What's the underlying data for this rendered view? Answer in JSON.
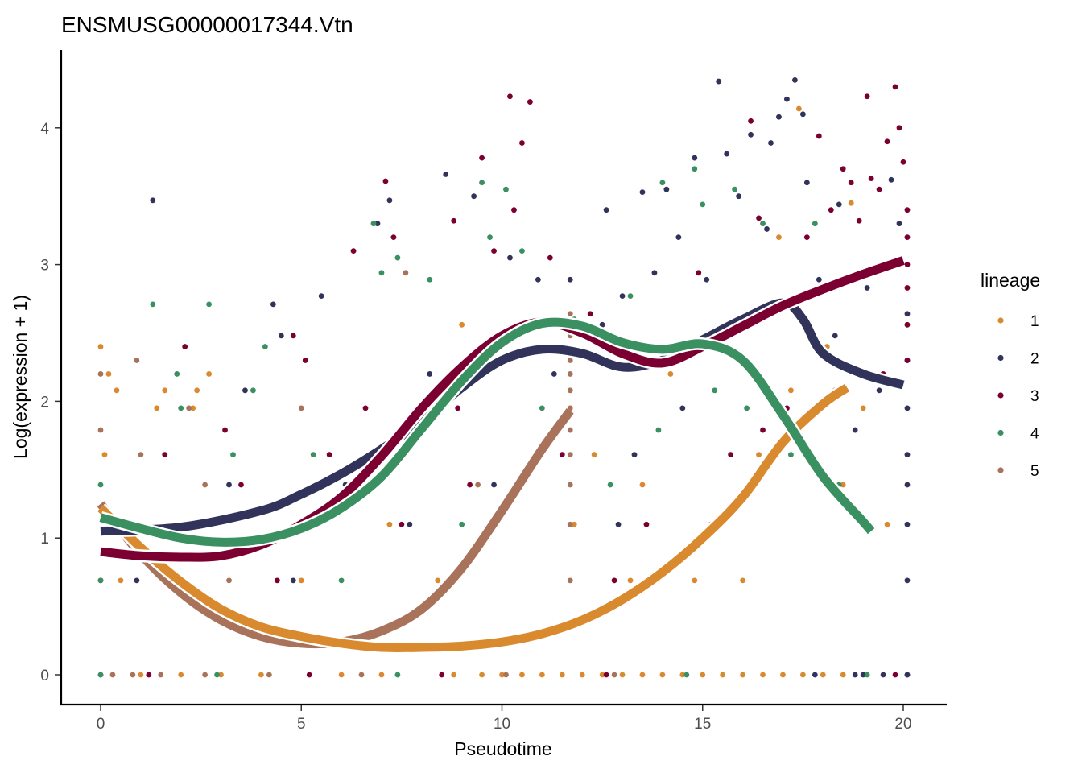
{
  "chart_data": {
    "type": "scatter",
    "title": "ENSMUSG00000017344.Vtn",
    "xlabel": "Pseudotime",
    "ylabel": "Log(expression + 1)",
    "xlim": [
      -1,
      21
    ],
    "ylim": [
      -0.22,
      4.55
    ],
    "x_ticks": [
      0,
      5,
      10,
      15,
      20
    ],
    "x_tick_labels": [
      "0",
      "5",
      "10",
      "15",
      "20"
    ],
    "y_ticks": [
      0,
      1,
      2,
      3,
      4
    ],
    "y_tick_labels": [
      "0",
      "1",
      "2",
      "3",
      "4"
    ],
    "grid": false,
    "legend": {
      "title": "lineage",
      "placement": "right"
    },
    "series": [
      {
        "name": "1",
        "color": "#D98A2E",
        "smooth_curve": {
          "x": [
            0,
            1,
            2,
            3,
            4,
            5,
            6,
            7,
            8,
            9,
            10,
            11,
            12,
            13,
            14,
            15,
            16,
            17,
            18,
            18.6
          ],
          "y": [
            1.22,
            0.93,
            0.68,
            0.48,
            0.35,
            0.28,
            0.23,
            0.2,
            0.2,
            0.21,
            0.24,
            0.3,
            0.4,
            0.55,
            0.75,
            1.0,
            1.3,
            1.7,
            1.98,
            2.1
          ]
        },
        "points": [
          [
            0,
            2.4
          ],
          [
            0.2,
            2.2
          ],
          [
            0.4,
            2.08
          ],
          [
            0.1,
            1.61
          ],
          [
            1.6,
            2.08
          ],
          [
            2.4,
            2.08
          ],
          [
            2.7,
            2.2
          ],
          [
            1.4,
            1.95
          ],
          [
            2.3,
            1.95
          ],
          [
            0.3,
            1.1
          ],
          [
            0.5,
            0.69
          ],
          [
            1.7,
            0.69
          ],
          [
            5.0,
            0.69
          ],
          [
            8.4,
            0.69
          ],
          [
            7.2,
            1.1
          ],
          [
            9.0,
            2.56
          ],
          [
            11.8,
            1.1
          ],
          [
            12.3,
            1.61
          ],
          [
            13.5,
            1.39
          ],
          [
            14.2,
            2.2
          ],
          [
            15.8,
            2.56
          ],
          [
            17.4,
            4.14
          ],
          [
            16.9,
            3.2
          ],
          [
            17.2,
            2.08
          ],
          [
            18.1,
            2.4
          ],
          [
            18.7,
            3.45
          ],
          [
            19.0,
            1.95
          ],
          [
            15.2,
            1.1
          ],
          [
            16.4,
            1.61
          ],
          [
            13.2,
            0.69
          ],
          [
            14.8,
            0.69
          ],
          [
            16.0,
            0.69
          ],
          [
            18.5,
            1.39
          ],
          [
            19.6,
            1.1
          ],
          [
            10.5,
            0
          ],
          [
            11,
            0
          ],
          [
            11.5,
            0
          ],
          [
            12,
            0
          ],
          [
            12.5,
            0
          ],
          [
            13,
            0
          ],
          [
            13.5,
            0
          ],
          [
            14,
            0
          ],
          [
            14.5,
            0
          ],
          [
            15,
            0
          ],
          [
            15.5,
            0
          ],
          [
            16,
            0
          ],
          [
            16.5,
            0
          ],
          [
            17,
            0
          ],
          [
            17.5,
            0
          ],
          [
            1,
            0
          ],
          [
            2,
            0
          ],
          [
            3,
            0
          ],
          [
            4,
            0
          ],
          [
            6,
            0
          ],
          [
            7,
            0
          ],
          [
            8.8,
            0
          ],
          [
            9.5,
            0
          ],
          [
            10,
            0
          ],
          [
            18,
            0
          ],
          [
            18.5,
            0
          ]
        ]
      },
      {
        "name": "2",
        "color": "#31335A",
        "smooth_curve": {
          "x": [
            0,
            2,
            4,
            5,
            6,
            7,
            8,
            9,
            10,
            11,
            12,
            13,
            14,
            15,
            16,
            17,
            17.5,
            18,
            19,
            20
          ],
          "y": [
            1.05,
            1.08,
            1.2,
            1.32,
            1.47,
            1.65,
            1.85,
            2.1,
            2.3,
            2.38,
            2.35,
            2.25,
            2.3,
            2.45,
            2.6,
            2.72,
            2.6,
            2.35,
            2.2,
            2.12
          ]
        },
        "points": [
          [
            1.3,
            3.47
          ],
          [
            4.3,
            2.71
          ],
          [
            4.5,
            2.48
          ],
          [
            5.5,
            2.77
          ],
          [
            3.6,
            2.08
          ],
          [
            6.9,
            3.3
          ],
          [
            7.2,
            3.47
          ],
          [
            8.6,
            3.66
          ],
          [
            9.3,
            3.5
          ],
          [
            10.2,
            3.05
          ],
          [
            10.9,
            2.89
          ],
          [
            11.7,
            2.89
          ],
          [
            12.6,
            3.4
          ],
          [
            13,
            2.77
          ],
          [
            13.5,
            3.53
          ],
          [
            14.1,
            3.55
          ],
          [
            14.8,
            3.78
          ],
          [
            15.4,
            4.34
          ],
          [
            15.6,
            3.81
          ],
          [
            16.2,
            3.95
          ],
          [
            16.9,
            4.08
          ],
          [
            17.1,
            4.21
          ],
          [
            17.3,
            4.35
          ],
          [
            17.5,
            4.1
          ],
          [
            16.7,
            3.89
          ],
          [
            17.6,
            3.6
          ],
          [
            18.4,
            3.44
          ],
          [
            19.7,
            3.62
          ],
          [
            19.9,
            3.3
          ],
          [
            20.1,
            2.64
          ],
          [
            20.1,
            2.3
          ],
          [
            20.1,
            1.95
          ],
          [
            20.1,
            1.61
          ],
          [
            20.1,
            1.39
          ],
          [
            20.1,
            1.1
          ],
          [
            20.1,
            0.69
          ],
          [
            20.1,
            0
          ],
          [
            19.4,
            2.08
          ],
          [
            18.8,
            1.79
          ],
          [
            14.5,
            1.95
          ],
          [
            13.3,
            1.61
          ],
          [
            12.9,
            1.1
          ],
          [
            9.8,
            1.39
          ],
          [
            8.2,
            2.2
          ],
          [
            6.1,
            1.39
          ],
          [
            3.2,
            1.39
          ],
          [
            1.8,
            1.1
          ],
          [
            0.9,
            0.69
          ],
          [
            4.8,
            0.69
          ],
          [
            7.7,
            1.1
          ],
          [
            11.3,
            2.2
          ],
          [
            12.5,
            2.56
          ],
          [
            15.1,
            2.89
          ],
          [
            16.3,
            2.64
          ],
          [
            17.9,
            2.89
          ],
          [
            18.3,
            2.48
          ],
          [
            19.1,
            2.83
          ],
          [
            16.6,
            3.26
          ],
          [
            15.9,
            3.5
          ],
          [
            14.4,
            3.2
          ],
          [
            13.8,
            2.94
          ],
          [
            19.5,
            0
          ],
          [
            19,
            0
          ],
          [
            18.8,
            0
          ],
          [
            17.8,
            0
          ],
          [
            20.1,
            0
          ]
        ]
      },
      {
        "name": "3",
        "color": "#7B0031",
        "smooth_curve": {
          "x": [
            0,
            1,
            2,
            3,
            4,
            5,
            6,
            7,
            8,
            9,
            10,
            11,
            12,
            13,
            14,
            15,
            16,
            17,
            18,
            19,
            20
          ],
          "y": [
            0.9,
            0.87,
            0.86,
            0.87,
            0.95,
            1.1,
            1.3,
            1.6,
            1.95,
            2.25,
            2.48,
            2.58,
            2.5,
            2.35,
            2.28,
            2.4,
            2.55,
            2.7,
            2.82,
            2.93,
            3.03
          ]
        },
        "points": [
          [
            2.1,
            2.4
          ],
          [
            1.6,
            1.61
          ],
          [
            3.1,
            1.79
          ],
          [
            4.8,
            2.48
          ],
          [
            5.1,
            2.3
          ],
          [
            6.3,
            3.1
          ],
          [
            7.1,
            3.61
          ],
          [
            7.3,
            3.2
          ],
          [
            8.8,
            3.32
          ],
          [
            9.5,
            3.78
          ],
          [
            10.2,
            4.23
          ],
          [
            10.7,
            4.19
          ],
          [
            10.5,
            3.89
          ],
          [
            11.2,
            3.05
          ],
          [
            10.3,
            3.4
          ],
          [
            9.8,
            3.1
          ],
          [
            12.2,
            2.64
          ],
          [
            16.2,
            4.05
          ],
          [
            17.9,
            3.94
          ],
          [
            19.1,
            4.23
          ],
          [
            19.8,
            4.3
          ],
          [
            19.9,
            4.0
          ],
          [
            20.0,
            3.75
          ],
          [
            19.6,
            3.9
          ],
          [
            19.2,
            3.63
          ],
          [
            18.7,
            3.6
          ],
          [
            18.2,
            3.4
          ],
          [
            17.6,
            3.2
          ],
          [
            18.9,
            3.32
          ],
          [
            20.1,
            3.4
          ],
          [
            20.1,
            3.2
          ],
          [
            20.1,
            3.0
          ],
          [
            20.1,
            2.83
          ],
          [
            20.1,
            2.56
          ],
          [
            20.1,
            2.3
          ],
          [
            19.5,
            2.2
          ],
          [
            18.3,
            2.08
          ],
          [
            17.1,
            1.95
          ],
          [
            16.5,
            1.79
          ],
          [
            15.7,
            1.61
          ],
          [
            13.6,
            1.1
          ],
          [
            12.8,
            0.69
          ],
          [
            9.2,
            1.39
          ],
          [
            8.9,
            1.95
          ],
          [
            6.6,
            1.95
          ],
          [
            5.7,
            1.61
          ],
          [
            3.5,
            1.39
          ],
          [
            2.5,
            1.1
          ],
          [
            0,
            0.69
          ],
          [
            4.4,
            0.69
          ],
          [
            7.5,
            1.1
          ],
          [
            11.5,
            1.61
          ],
          [
            14.9,
            2.94
          ],
          [
            16.4,
            3.34
          ],
          [
            18.5,
            3.7
          ],
          [
            19.4,
            3.55
          ],
          [
            0,
            0
          ],
          [
            1.2,
            0
          ],
          [
            5.2,
            0
          ],
          [
            8.5,
            0
          ],
          [
            12.6,
            0
          ],
          [
            19.8,
            0
          ]
        ]
      },
      {
        "name": "4",
        "color": "#3A9061",
        "smooth_curve": {
          "x": [
            0,
            1,
            2,
            3,
            4,
            5,
            6,
            7,
            8,
            9,
            10,
            11,
            12,
            13,
            14,
            15,
            16,
            17,
            18,
            19,
            19.2
          ],
          "y": [
            1.15,
            1.07,
            1.0,
            0.97,
            0.99,
            1.07,
            1.22,
            1.45,
            1.8,
            2.15,
            2.43,
            2.57,
            2.55,
            2.43,
            2.38,
            2.42,
            2.3,
            1.9,
            1.45,
            1.12,
            1.05
          ]
        },
        "points": [
          [
            1.3,
            2.71
          ],
          [
            2.7,
            2.71
          ],
          [
            3.8,
            2.08
          ],
          [
            4.1,
            2.4
          ],
          [
            6.8,
            3.3
          ],
          [
            7.0,
            2.94
          ],
          [
            7.4,
            3.05
          ],
          [
            9.5,
            3.6
          ],
          [
            9.7,
            3.2
          ],
          [
            10.1,
            3.55
          ],
          [
            10.5,
            3.1
          ],
          [
            11.8,
            2.6
          ],
          [
            1.9,
            2.2
          ],
          [
            2.0,
            1.95
          ],
          [
            3.3,
            1.61
          ],
          [
            5.3,
            1.61
          ],
          [
            8.2,
            2.89
          ],
          [
            13.2,
            2.77
          ],
          [
            14.0,
            3.6
          ],
          [
            14.8,
            3.7
          ],
          [
            15.0,
            3.44
          ],
          [
            15.8,
            3.55
          ],
          [
            16.5,
            3.3
          ],
          [
            17.8,
            3.3
          ],
          [
            12.7,
            1.39
          ],
          [
            13.9,
            1.79
          ],
          [
            15.3,
            2.08
          ],
          [
            16.1,
            1.95
          ],
          [
            17.2,
            1.61
          ],
          [
            18.4,
            1.39
          ],
          [
            19.0,
            1.1
          ],
          [
            0,
            1.39
          ],
          [
            0.2,
            1.1
          ],
          [
            0,
            0.69
          ],
          [
            6.0,
            0.69
          ],
          [
            9.0,
            1.1
          ],
          [
            11.0,
            1.95
          ],
          [
            0,
            0
          ],
          [
            2.9,
            0
          ],
          [
            7.4,
            0
          ],
          [
            14.6,
            0
          ],
          [
            19.1,
            0
          ]
        ]
      },
      {
        "name": "5",
        "color": "#A8735A",
        "smooth_curve": {
          "x": [
            0,
            1,
            2,
            3,
            4,
            5,
            6,
            7,
            8,
            9,
            10,
            11,
            11.7
          ],
          "y": [
            1.25,
            0.88,
            0.6,
            0.4,
            0.28,
            0.23,
            0.24,
            0.32,
            0.48,
            0.78,
            1.2,
            1.65,
            1.93
          ]
        },
        "points": [
          [
            0.9,
            2.3
          ],
          [
            0,
            2.2
          ],
          [
            2.2,
            1.95
          ],
          [
            0,
            1.79
          ],
          [
            1.0,
            1.61
          ],
          [
            2.6,
            1.39
          ],
          [
            5.0,
            1.95
          ],
          [
            7.6,
            2.94
          ],
          [
            11.7,
            2.64
          ],
          [
            11.7,
            2.48
          ],
          [
            11.7,
            2.3
          ],
          [
            11.7,
            2.2
          ],
          [
            11.7,
            2.08
          ],
          [
            11.7,
            1.95
          ],
          [
            11.7,
            1.79
          ],
          [
            11.7,
            1.61
          ],
          [
            11.7,
            1.39
          ],
          [
            11.7,
            1.1
          ],
          [
            11.7,
            0.69
          ],
          [
            3.2,
            0.69
          ],
          [
            9.4,
            1.39
          ],
          [
            0.3,
            0
          ],
          [
            0.8,
            0
          ],
          [
            1.5,
            0
          ],
          [
            2.6,
            0
          ],
          [
            4.2,
            0
          ],
          [
            6.5,
            0
          ],
          [
            10.1,
            0
          ],
          [
            12.8,
            0
          ]
        ]
      }
    ]
  }
}
